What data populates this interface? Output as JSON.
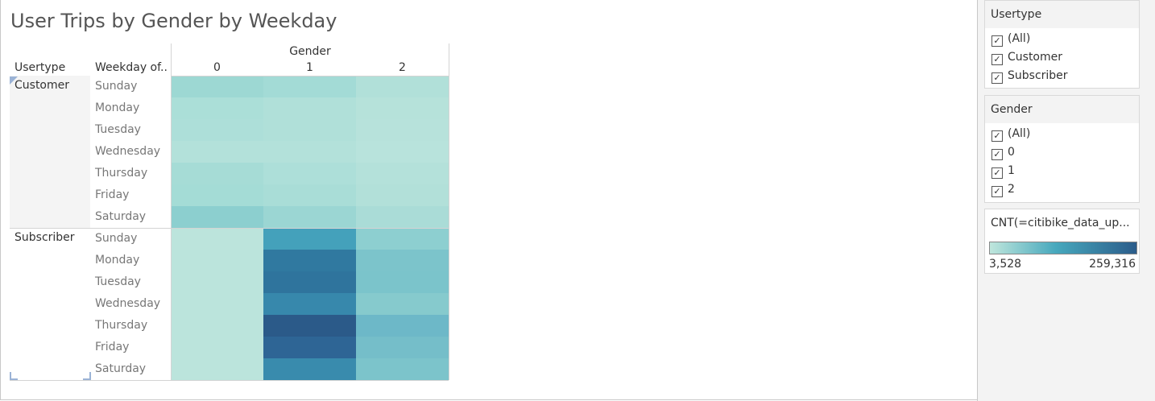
{
  "sheet": {
    "title": "User Trips by Gender by Weekday",
    "headers": {
      "usertype": "Usertype",
      "weekday": "Weekday of..",
      "gender": "Gender",
      "columns": [
        "0",
        "1",
        "2"
      ]
    }
  },
  "table": {
    "groups": [
      {
        "usertype": "Customer",
        "rows": [
          {
            "day": "Sunday",
            "colors": [
              "#9dd8d3",
              "#a3dbd6",
              "#b1e0d9"
            ]
          },
          {
            "day": "Monday",
            "colors": [
              "#abdfd8",
              "#b0e0d9",
              "#b6e2da"
            ]
          },
          {
            "day": "Tuesday",
            "colors": [
              "#addfd9",
              "#b0e0d9",
              "#b7e2db"
            ]
          },
          {
            "day": "Wednesday",
            "colors": [
              "#b3e1da",
              "#b3e1da",
              "#b8e3dc"
            ]
          },
          {
            "day": "Thursday",
            "colors": [
              "#a6dcd6",
              "#addfd9",
              "#b4e1da"
            ]
          },
          {
            "day": "Friday",
            "colors": [
              "#a4dcd6",
              "#a9ddd7",
              "#b2e0d9"
            ]
          },
          {
            "day": "Saturday",
            "colors": [
              "#8ccfcf",
              "#9bd6d3",
              "#aadcd7"
            ]
          }
        ]
      },
      {
        "usertype": "Subscriber",
        "rows": [
          {
            "day": "Sunday",
            "colors": [
              "#bce4dc",
              "#44a1bb",
              "#8dcfd0"
            ]
          },
          {
            "day": "Monday",
            "colors": [
              "#bbe4dc",
              "#3079a0",
              "#7cc4cb"
            ]
          },
          {
            "day": "Tuesday",
            "colors": [
              "#bbe4dc",
              "#2f749d",
              "#7bc4cb"
            ]
          },
          {
            "day": "Wednesday",
            "colors": [
              "#bbe4dc",
              "#3788ac",
              "#86cacd"
            ]
          },
          {
            "day": "Thursday",
            "colors": [
              "#bbe4dc",
              "#2b5a89",
              "#6db8c8"
            ]
          },
          {
            "day": "Friday",
            "colors": [
              "#bbe4dc",
              "#2e6595",
              "#75bec9"
            ]
          },
          {
            "day": "Saturday",
            "colors": [
              "#bbe4dc",
              "#398bad",
              "#7cc4cb"
            ]
          }
        ]
      }
    ]
  },
  "filters": {
    "usertype": {
      "title": "Usertype",
      "options": [
        "(All)",
        "Customer",
        "Subscriber"
      ],
      "checked": [
        true,
        true,
        true
      ]
    },
    "gender": {
      "title": "Gender",
      "options": [
        "(All)",
        "0",
        "1",
        "2"
      ],
      "checked": [
        true,
        true,
        true,
        true
      ]
    }
  },
  "legend": {
    "title": "CNT(=citibike_data_up...",
    "min": "3,528",
    "max": "259,316",
    "colors": [
      "#bfe6dc",
      "#47a8bd",
      "#2b5c8a"
    ]
  },
  "icons": {
    "checkbox": "checkmark-icon"
  }
}
